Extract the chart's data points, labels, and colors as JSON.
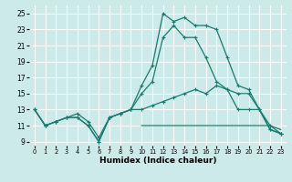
{
  "xlabel": "Humidex (Indice chaleur)",
  "bg_color": "#cceaea",
  "grid_color": "#ffffff",
  "line_color": "#1a7a6e",
  "xlim": [
    -0.5,
    23.5
  ],
  "ylim": [
    8.5,
    26
  ],
  "xticks": [
    0,
    1,
    2,
    3,
    4,
    5,
    6,
    7,
    8,
    9,
    10,
    11,
    12,
    13,
    14,
    15,
    16,
    17,
    18,
    19,
    20,
    21,
    22,
    23
  ],
  "yticks": [
    9,
    11,
    13,
    15,
    17,
    19,
    21,
    23,
    25
  ],
  "series_peak": {
    "x": [
      0,
      1,
      2,
      3,
      4,
      5,
      6,
      7,
      8,
      9,
      10,
      11,
      12,
      13,
      14,
      15,
      16,
      17,
      18,
      19,
      20,
      21,
      22,
      23
    ],
    "y": [
      13,
      11,
      11.5,
      12,
      12,
      11,
      9,
      12,
      12.5,
      13,
      16,
      18.5,
      25,
      24,
      24.5,
      23.5,
      23.5,
      23,
      19.5,
      16,
      15.5,
      13,
      11,
      10
    ]
  },
  "series_mid": {
    "x": [
      0,
      1,
      2,
      3,
      4,
      5,
      6,
      7,
      8,
      9,
      10,
      11,
      12,
      13,
      14,
      15,
      16,
      17,
      18,
      19,
      20,
      21,
      22,
      23
    ],
    "y": [
      13,
      11,
      11.5,
      12,
      12,
      11,
      9,
      12,
      12.5,
      13,
      15,
      16.5,
      22,
      23.5,
      22,
      22,
      19.5,
      16.5,
      15.5,
      13,
      13,
      13,
      10.5,
      10
    ]
  },
  "series_low_rise": {
    "x": [
      0,
      1,
      2,
      3,
      4,
      5,
      6,
      7,
      8,
      9,
      10,
      11,
      12,
      13,
      14,
      15,
      16,
      17,
      18,
      19,
      20,
      21,
      22,
      23
    ],
    "y": [
      13,
      11,
      11.5,
      12,
      12.5,
      11.5,
      9.5,
      12,
      12.5,
      13,
      13,
      13.5,
      14,
      14.5,
      15,
      15.5,
      15,
      16,
      15.5,
      15,
      15,
      13,
      10.5,
      10
    ]
  },
  "series_flat": {
    "x": [
      10,
      11,
      12,
      13,
      14,
      15,
      16,
      17,
      18,
      19,
      20,
      21,
      22,
      23
    ],
    "y": [
      11,
      11,
      11,
      11,
      11,
      11,
      11,
      11,
      11,
      11,
      11,
      11,
      11,
      10.5
    ]
  }
}
